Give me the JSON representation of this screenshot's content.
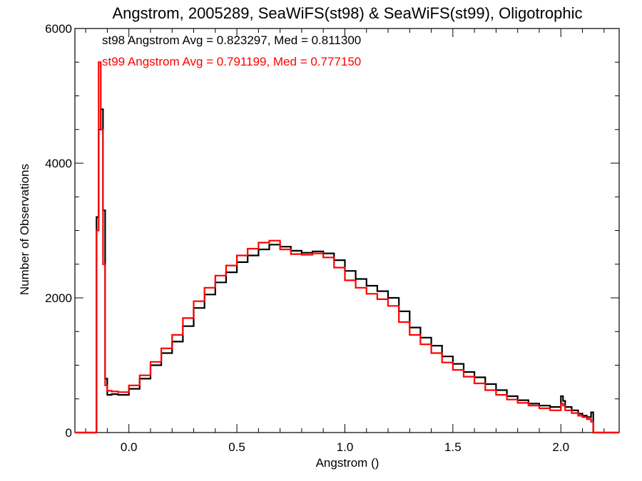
{
  "chart_data": {
    "type": "line",
    "title": "Angstrom, 2005289, SeaWiFS(st98) & SeaWiFS(st99), Oligotrophic",
    "xlabel": "Angstrom ()",
    "ylabel": "Number of Observations",
    "xlim": [
      -0.25,
      2.27
    ],
    "ylim": [
      0,
      6000
    ],
    "x_ticks": [
      0.0,
      0.5,
      1.0,
      1.5,
      2.0
    ],
    "x_tick_labels": [
      "0.0",
      "0.5",
      "1.0",
      "1.5",
      "2.0"
    ],
    "y_ticks": [
      0,
      2000,
      4000,
      6000
    ],
    "y_tick_labels": [
      "0",
      "2000",
      "4000",
      "6000"
    ],
    "grid": false,
    "annotations": [
      {
        "text": "st98 Angstrom Avg = 0.823297, Med = 0.811300",
        "color": "#000000"
      },
      {
        "text": "st99 Angstrom Avg = 0.791199, Med = 0.777150",
        "color": "#ff0000"
      }
    ],
    "series": [
      {
        "color": "#000000",
        "x": [
          -0.25,
          -0.16,
          -0.15,
          -0.14,
          -0.13,
          -0.12,
          -0.11,
          -0.1,
          -0.08,
          -0.05,
          0.0,
          0.05,
          0.1,
          0.15,
          0.2,
          0.25,
          0.3,
          0.35,
          0.4,
          0.45,
          0.5,
          0.55,
          0.6,
          0.65,
          0.7,
          0.75,
          0.8,
          0.85,
          0.9,
          0.95,
          1.0,
          1.05,
          1.1,
          1.15,
          1.2,
          1.25,
          1.3,
          1.35,
          1.4,
          1.45,
          1.5,
          1.55,
          1.6,
          1.65,
          1.7,
          1.75,
          1.8,
          1.85,
          1.9,
          1.95,
          2.0,
          2.01,
          2.02,
          2.05,
          2.08,
          2.1,
          2.12,
          2.14,
          2.15,
          2.27
        ],
        "values": [
          0,
          0,
          3200,
          4500,
          4800,
          3300,
          800,
          560,
          570,
          560,
          650,
          800,
          1000,
          1180,
          1350,
          1580,
          1850,
          2050,
          2230,
          2380,
          2530,
          2630,
          2720,
          2790,
          2760,
          2700,
          2670,
          2690,
          2660,
          2560,
          2400,
          2280,
          2180,
          2100,
          2000,
          1800,
          1560,
          1410,
          1290,
          1130,
          1020,
          900,
          820,
          720,
          630,
          540,
          480,
          430,
          400,
          380,
          540,
          470,
          380,
          330,
          280,
          250,
          230,
          300,
          0,
          0
        ]
      },
      {
        "color": "#ff0000",
        "x": [
          -0.25,
          -0.16,
          -0.15,
          -0.14,
          -0.13,
          -0.12,
          -0.11,
          -0.1,
          -0.08,
          -0.05,
          0.0,
          0.05,
          0.1,
          0.15,
          0.2,
          0.25,
          0.3,
          0.35,
          0.4,
          0.45,
          0.5,
          0.55,
          0.6,
          0.65,
          0.7,
          0.75,
          0.8,
          0.85,
          0.9,
          0.95,
          1.0,
          1.05,
          1.1,
          1.15,
          1.2,
          1.25,
          1.3,
          1.35,
          1.4,
          1.45,
          1.5,
          1.55,
          1.6,
          1.65,
          1.7,
          1.75,
          1.8,
          1.85,
          1.9,
          1.95,
          2.0,
          2.01,
          2.02,
          2.05,
          2.08,
          2.1,
          2.12,
          2.14,
          2.15,
          2.27
        ],
        "values": [
          0,
          0,
          3000,
          5500,
          4500,
          2500,
          700,
          620,
          610,
          600,
          700,
          850,
          1050,
          1250,
          1450,
          1700,
          1950,
          2150,
          2330,
          2480,
          2630,
          2730,
          2820,
          2850,
          2720,
          2650,
          2640,
          2660,
          2600,
          2450,
          2260,
          2150,
          2060,
          1980,
          1880,
          1640,
          1450,
          1310,
          1180,
          1040,
          930,
          830,
          730,
          630,
          560,
          490,
          440,
          400,
          360,
          330,
          430,
          400,
          330,
          290,
          250,
          230,
          200,
          160,
          0,
          0
        ]
      }
    ]
  }
}
